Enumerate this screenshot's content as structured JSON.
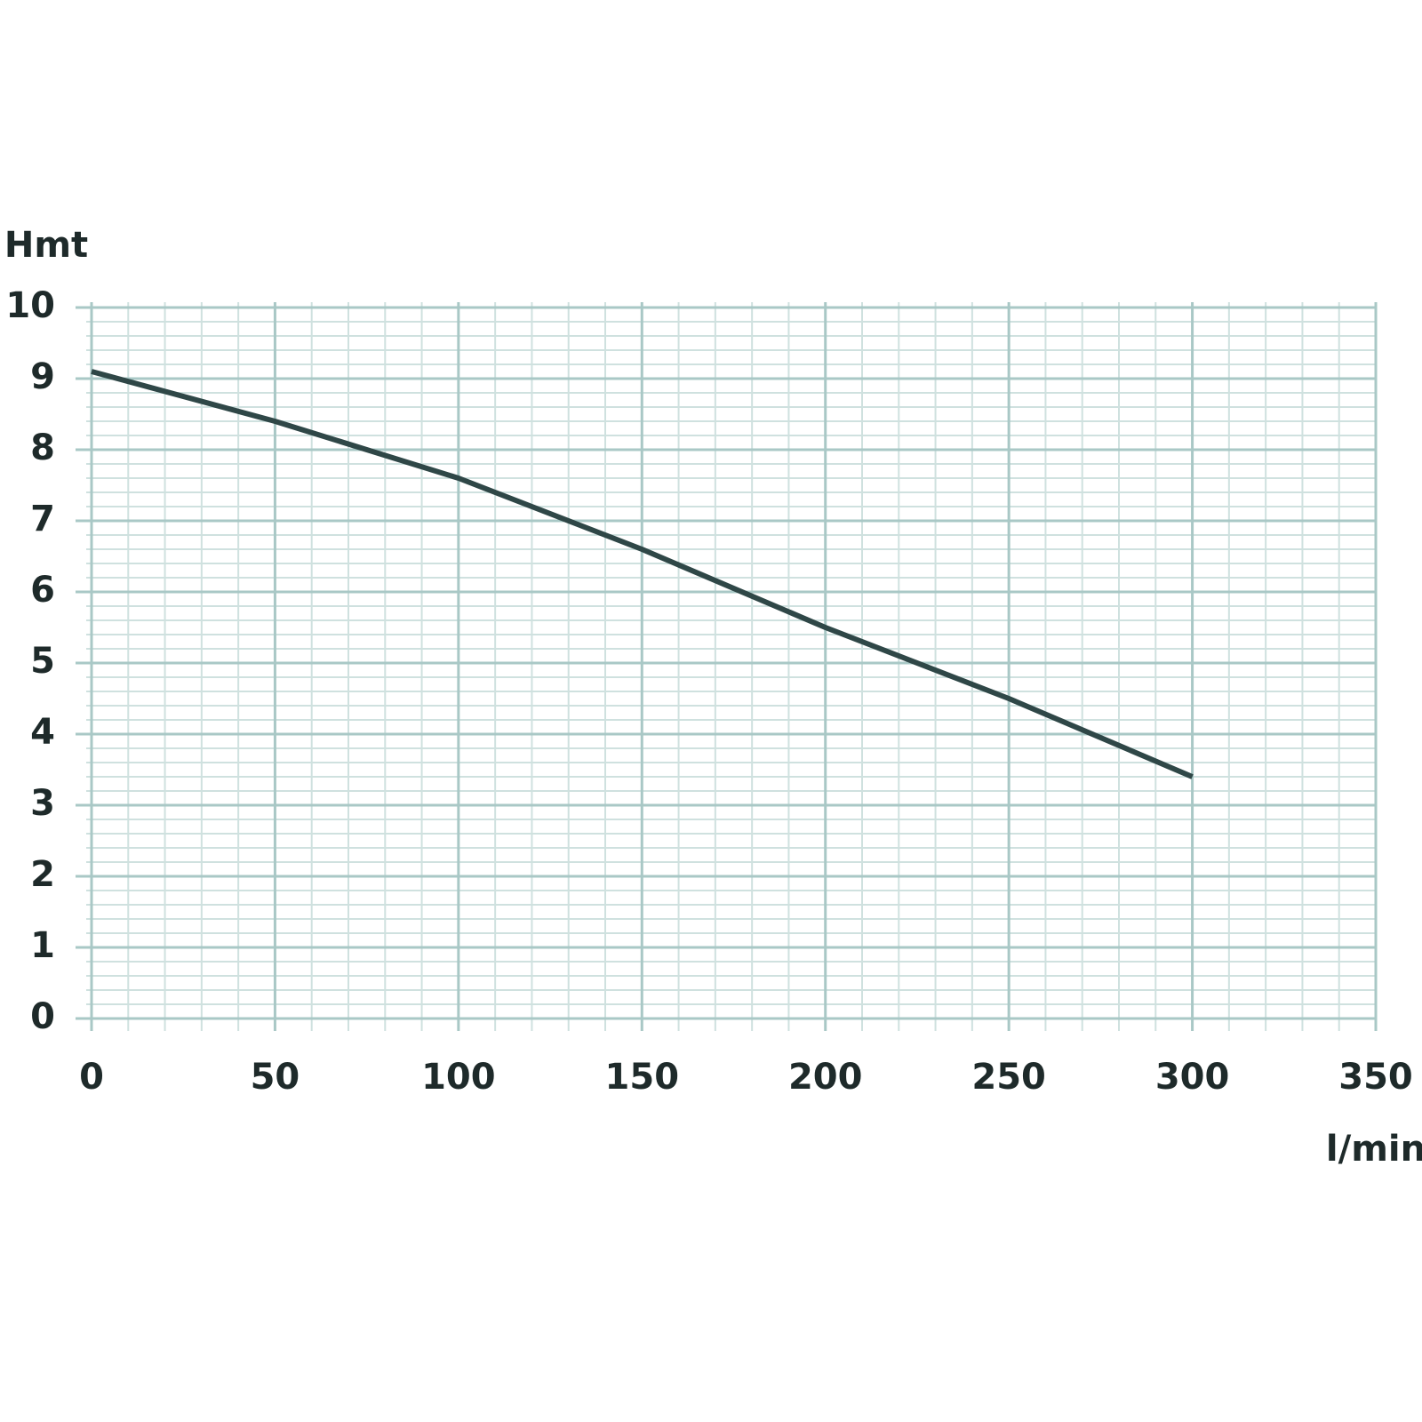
{
  "chart_data": {
    "type": "line",
    "ylabel": "Hmt",
    "xlabel": "l/min",
    "x": [
      0,
      50,
      100,
      150,
      200,
      250,
      300
    ],
    "values": [
      9.1,
      8.4,
      7.6,
      6.6,
      5.5,
      4.5,
      3.4
    ],
    "color": "#2f4747",
    "xlim": [
      0,
      350
    ],
    "xticks": [
      0,
      50,
      100,
      150,
      200,
      250,
      300,
      350
    ],
    "ylim": [
      0,
      10
    ],
    "yticks": [
      0,
      1,
      2,
      3,
      4,
      5,
      6,
      7,
      8,
      9,
      10
    ],
    "grid": true,
    "minor_grid": true
  }
}
